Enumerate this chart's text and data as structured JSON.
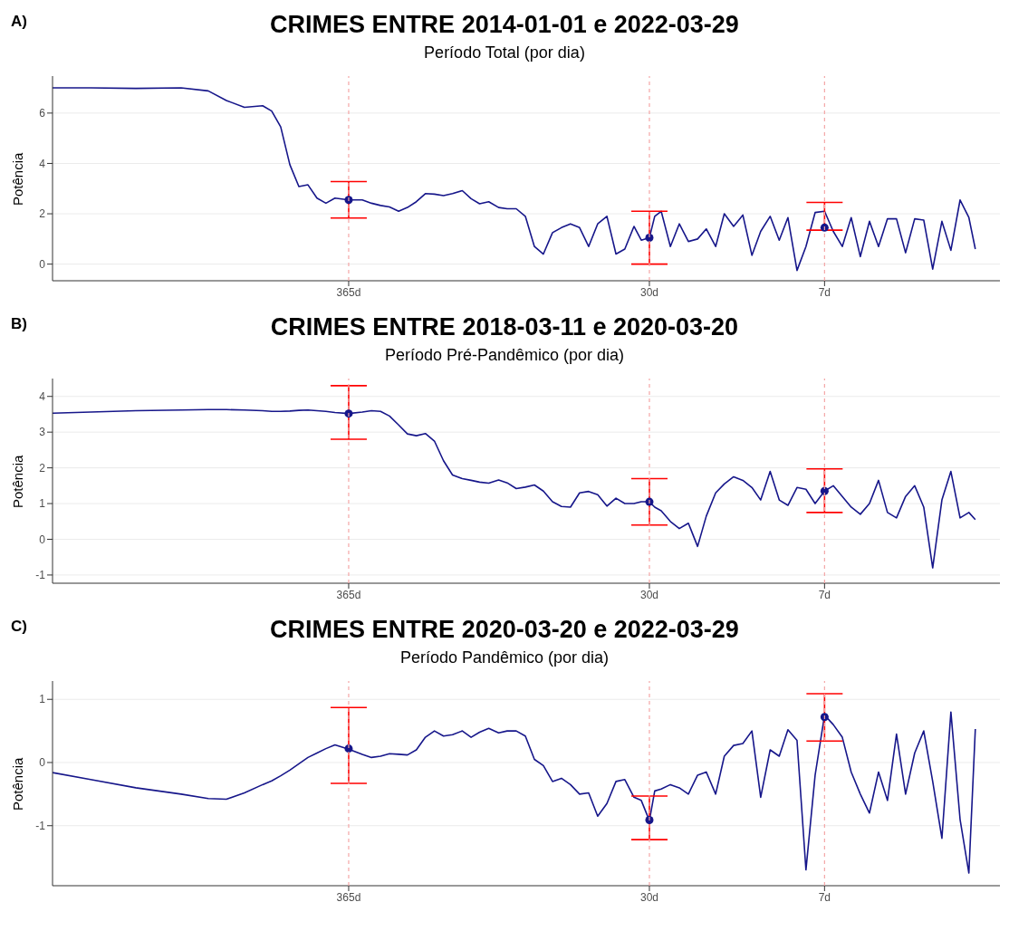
{
  "chart_data": [
    {
      "type": "line",
      "title": "CRIMES ENTRE 2014-01-01 e 2022-03-29",
      "subtitle": "Período Total (por dia)",
      "ylabel": "Potência",
      "annotations": [
        "A)"
      ],
      "log": "x",
      "grid": "y",
      "x": [
        4275,
        3117,
        2140,
        1469,
        1172,
        1008,
        868,
        746,
        692,
        642,
        595,
        552,
        512,
        475,
        441,
        409,
        365,
        326,
        302,
        280,
        260,
        241,
        224,
        208,
        193,
        179,
        166,
        154,
        142,
        132,
        123,
        114,
        105,
        97.8,
        90.7,
        84.1,
        78.0,
        72.4,
        67.1,
        62.3,
        57.8,
        53.6,
        49.7,
        46.1,
        42.7,
        39.6,
        36.8,
        34.1,
        32.1,
        30,
        28.7,
        27.2,
        25.2,
        23.4,
        21.7,
        20.1,
        18.7,
        17.3,
        16.1,
        14.9,
        13.8,
        12.8,
        11.9,
        11.0,
        10.2,
        9.49,
        8.8,
        8.17,
        7.57,
        7,
        6.51,
        6.04,
        5.61,
        5.2,
        4.82,
        4.47,
        4.15,
        3.85,
        3.57,
        3.31,
        3.07,
        2.85,
        2.64,
        2.45,
        2.27,
        2.11,
        2.0
      ],
      "xlim": [
        4275,
        1.63
      ],
      "xticks": [
        {
          "value": 365,
          "label": "365d"
        },
        {
          "value": 30,
          "label": "30d"
        },
        {
          "value": 7,
          "label": "7d"
        }
      ],
      "ylim": [
        -0.66,
        7.47
      ],
      "yticks": [
        0,
        2,
        4,
        6
      ],
      "ref_lines": [
        {
          "axis": "x",
          "value": 365,
          "color": "#f4a6a6",
          "line_style": "dashed"
        },
        {
          "axis": "x",
          "value": 30,
          "color": "#f4a6a6",
          "line_style": "dashed"
        },
        {
          "axis": "x",
          "value": 7,
          "color": "#f4a6a6",
          "line_style": "dashed"
        }
      ],
      "series": [
        {
          "type": "line",
          "color": "#16168a",
          "values": [
            7.0,
            7.0,
            6.98,
            7.0,
            6.88,
            6.5,
            6.23,
            6.29,
            6.08,
            5.45,
            3.95,
            3.08,
            3.15,
            2.62,
            2.42,
            2.62,
            2.55,
            2.55,
            2.42,
            2.33,
            2.27,
            2.1,
            2.25,
            2.48,
            2.8,
            2.78,
            2.72,
            2.8,
            2.92,
            2.6,
            2.4,
            2.48,
            2.25,
            2.2,
            2.2,
            1.9,
            0.7,
            0.4,
            1.25,
            1.45,
            1.6,
            1.45,
            0.7,
            1.6,
            1.9,
            0.4,
            0.6,
            1.5,
            0.95,
            1.05,
            1.9,
            2.1,
            0.7,
            1.6,
            0.9,
            1.0,
            1.4,
            0.7,
            2.0,
            1.5,
            1.95,
            0.35,
            1.3,
            1.9,
            0.95,
            1.85,
            -0.25,
            0.7,
            2.05,
            2.1,
            1.3,
            0.7,
            1.85,
            0.3,
            1.7,
            0.7,
            1.8,
            1.8,
            0.45,
            1.8,
            1.75,
            -0.2,
            1.7,
            0.55,
            2.55,
            1.85,
            0.6
          ]
        },
        {
          "type": "scatter",
          "color": "#16168a",
          "marker": "circle",
          "x": [
            365,
            30,
            7
          ],
          "values": [
            2.55,
            1.05,
            1.45
          ],
          "errors": [
            [
              1.83,
              3.28
            ],
            [
              0,
              2.1
            ],
            [
              1.35,
              2.45
            ]
          ]
        }
      ]
    },
    {
      "type": "line",
      "title": "CRIMES ENTRE 2018-03-11 e 2020-03-20",
      "subtitle": "Período Pré-Pandêmico (por dia)",
      "ylabel": "Potência",
      "annotations": [
        "B)"
      ],
      "log": "x",
      "grid": "y",
      "x": [
        4275,
        3117,
        2140,
        1469,
        1172,
        1008,
        868,
        746,
        692,
        642,
        595,
        552,
        512,
        475,
        441,
        409,
        365,
        326,
        302,
        280,
        260,
        241,
        224,
        208,
        193,
        179,
        166,
        154,
        142,
        132,
        123,
        114,
        105,
        97.8,
        90.7,
        84.1,
        78.0,
        72.4,
        67.1,
        62.3,
        57.8,
        53.6,
        49.7,
        46.1,
        42.7,
        39.6,
        36.8,
        34.1,
        32.1,
        30,
        28.7,
        27.2,
        25.2,
        23.4,
        21.7,
        20.1,
        18.7,
        17.3,
        16.1,
        14.9,
        13.8,
        12.8,
        11.9,
        11.0,
        10.2,
        9.49,
        8.8,
        8.17,
        7.57,
        7,
        6.51,
        6.04,
        5.61,
        5.2,
        4.82,
        4.47,
        4.15,
        3.85,
        3.57,
        3.31,
        3.07,
        2.85,
        2.64,
        2.45,
        2.27,
        2.11,
        2.0
      ],
      "xlim": [
        4275,
        1.63
      ],
      "xticks": [
        {
          "value": 365,
          "label": "365d"
        },
        {
          "value": 30,
          "label": "30d"
        },
        {
          "value": 7,
          "label": "7d"
        }
      ],
      "ylim": [
        -1.23,
        4.5
      ],
      "yticks": [
        -1,
        0,
        1,
        2,
        3,
        4
      ],
      "ref_lines": [
        {
          "axis": "x",
          "value": 365,
          "color": "#f4a6a6",
          "line_style": "dashed"
        },
        {
          "axis": "x",
          "value": 30,
          "color": "#f4a6a6",
          "line_style": "dashed"
        },
        {
          "axis": "x",
          "value": 7,
          "color": "#f4a6a6",
          "line_style": "dashed"
        }
      ],
      "series": [
        {
          "type": "line",
          "color": "#16168a",
          "values": [
            3.53,
            3.56,
            3.6,
            3.62,
            3.63,
            3.63,
            3.62,
            3.6,
            3.58,
            3.58,
            3.59,
            3.61,
            3.62,
            3.6,
            3.58,
            3.55,
            3.52,
            3.56,
            3.6,
            3.58,
            3.45,
            3.2,
            2.95,
            2.9,
            2.96,
            2.75,
            2.2,
            1.8,
            1.7,
            1.65,
            1.6,
            1.57,
            1.66,
            1.58,
            1.42,
            1.46,
            1.52,
            1.35,
            1.05,
            0.92,
            0.9,
            1.3,
            1.34,
            1.25,
            0.93,
            1.15,
            1.0,
            1.0,
            1.05,
            1.05,
            0.9,
            0.8,
            0.5,
            0.3,
            0.45,
            -0.2,
            0.65,
            1.3,
            1.55,
            1.75,
            1.65,
            1.45,
            1.1,
            1.9,
            1.1,
            0.95,
            1.45,
            1.4,
            1.0,
            1.35,
            1.5,
            1.2,
            0.9,
            0.7,
            1.0,
            1.65,
            0.75,
            0.6,
            1.2,
            1.5,
            0.9,
            -0.8,
            1.1,
            1.9,
            0.6,
            0.75,
            0.55
          ]
        },
        {
          "type": "scatter",
          "color": "#16168a",
          "marker": "circle",
          "x": [
            365,
            30,
            7
          ],
          "values": [
            3.52,
            1.05,
            1.35
          ],
          "errors": [
            [
              2.8,
              4.3
            ],
            [
              0.4,
              1.7
            ],
            [
              0.75,
              1.97
            ]
          ]
        }
      ]
    },
    {
      "type": "line",
      "title": "CRIMES ENTRE 2020-03-20 e 2022-03-29",
      "subtitle": "Período Pandêmico (por dia)",
      "ylabel": "Potência",
      "annotations": [
        "C)"
      ],
      "log": "x",
      "grid": "y",
      "x": [
        4275,
        3117,
        2140,
        1469,
        1172,
        1008,
        868,
        746,
        692,
        642,
        595,
        552,
        512,
        475,
        441,
        409,
        365,
        326,
        302,
        280,
        260,
        241,
        224,
        208,
        193,
        179,
        166,
        154,
        142,
        132,
        123,
        114,
        105,
        97.8,
        90.7,
        84.1,
        78.0,
        72.4,
        67.1,
        62.3,
        57.8,
        53.6,
        49.7,
        46.1,
        42.7,
        39.6,
        36.8,
        34.1,
        32.1,
        30,
        28.7,
        27.2,
        25.2,
        23.4,
        21.7,
        20.1,
        18.7,
        17.3,
        16.1,
        14.9,
        13.8,
        12.8,
        11.9,
        11.0,
        10.2,
        9.49,
        8.8,
        8.17,
        7.57,
        7,
        6.51,
        6.04,
        5.61,
        5.2,
        4.82,
        4.47,
        4.15,
        3.85,
        3.57,
        3.31,
        3.07,
        2.85,
        2.64,
        2.45,
        2.27,
        2.11,
        2.0
      ],
      "xlim": [
        4275,
        1.63
      ],
      "xticks": [
        {
          "value": 365,
          "label": "365d"
        },
        {
          "value": 30,
          "label": "30d"
        },
        {
          "value": 7,
          "label": "7d"
        }
      ],
      "ylim": [
        -1.95,
        1.29
      ],
      "yticks": [
        -1,
        0,
        1
      ],
      "ref_lines": [
        {
          "axis": "x",
          "value": 365,
          "color": "#f4a6a6",
          "line_style": "dashed"
        },
        {
          "axis": "x",
          "value": 30,
          "color": "#f4a6a6",
          "line_style": "dashed"
        },
        {
          "axis": "x",
          "value": 7,
          "color": "#f4a6a6",
          "line_style": "dashed"
        }
      ],
      "series": [
        {
          "type": "line",
          "color": "#16168a",
          "values": [
            -0.16,
            -0.27,
            -0.4,
            -0.5,
            -0.57,
            -0.58,
            -0.48,
            -0.35,
            -0.29,
            -0.21,
            -0.12,
            -0.02,
            0.08,
            0.15,
            0.22,
            0.28,
            0.21,
            0.13,
            0.08,
            0.1,
            0.14,
            0.13,
            0.12,
            0.2,
            0.4,
            0.5,
            0.42,
            0.44,
            0.5,
            0.4,
            0.48,
            0.54,
            0.47,
            0.5,
            0.5,
            0.42,
            0.05,
            -0.05,
            -0.3,
            -0.25,
            -0.35,
            -0.5,
            -0.48,
            -0.85,
            -0.65,
            -0.3,
            -0.27,
            -0.55,
            -0.6,
            -0.92,
            -0.45,
            -0.42,
            -0.35,
            -0.4,
            -0.5,
            -0.2,
            -0.15,
            -0.5,
            0.1,
            0.27,
            0.3,
            0.5,
            -0.55,
            0.2,
            0.1,
            0.52,
            0.35,
            -1.7,
            -0.2,
            0.75,
            0.6,
            0.4,
            -0.15,
            -0.5,
            -0.8,
            -0.15,
            -0.6,
            0.45,
            -0.5,
            0.15,
            0.5,
            -0.3,
            -1.2,
            0.8,
            -0.9,
            -1.75,
            0.53
          ]
        },
        {
          "type": "scatter",
          "color": "#16168a",
          "marker": "circle",
          "x": [
            365,
            30,
            7
          ],
          "values": [
            0.22,
            -0.91,
            0.72
          ],
          "errors": [
            [
              -0.33,
              0.87
            ],
            [
              -1.22,
              -0.53
            ],
            [
              0.34,
              1.09
            ]
          ]
        }
      ]
    }
  ]
}
